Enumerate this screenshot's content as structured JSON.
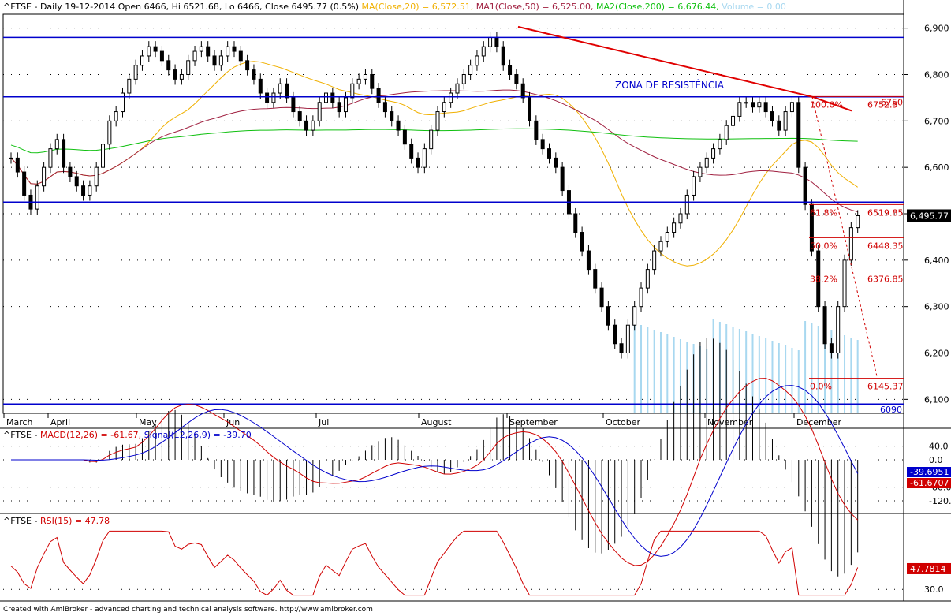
{
  "header": {
    "main_prefix": "^FTSE - Daily 19-12-2014 Open 6466, Hi 6521.68, Lo 6466, Close 6495.77 (0.5%)",
    "ma20": "MA(Close,20) = 6,572.51,",
    "ma50": "MA1(Close,50) = 6,525.00,",
    "ma200": "MA2(Close,200) = 6,676.44,",
    "volume": "Volume = 0.00",
    "macd_prefix": "^FTSE - ",
    "macd": "MACD(12,26) = -61.67,",
    "signal": "Signal(12,26,9) = -39.70",
    "rsi_prefix": "^FTSE - ",
    "rsi": "RSI(15) = 47.78"
  },
  "colors": {
    "candle_up": "#000000",
    "ma20": "#f0b000",
    "ma50": "#a02040",
    "ma200": "#10c010",
    "volume": "#a8d8f0",
    "level_line": "#0000cc",
    "trend_line": "#e00000",
    "fib": "#d00000",
    "macd": "#d00000",
    "signal": "#0000cc",
    "rsi": "#d00000"
  },
  "footer": "Created with AmiBroker - advanced charting and technical analysis software. http://www.amibroker.com",
  "chart_data": [
    {
      "type": "candlestick",
      "name": "price",
      "ylim": [
        6070,
        6930
      ],
      "y_ticks": [
        "6,900",
        "6,800",
        "6,700",
        "6,600",
        "6,500",
        "6,400",
        "6,300",
        "6,200",
        "6,100"
      ],
      "x_labels": [
        "March",
        "April",
        "May",
        "Jun",
        "Jul",
        "August",
        "September",
        "October",
        "November",
        "December"
      ],
      "levels": [
        6880,
        6752,
        6525,
        6090
      ],
      "level_labels": [
        "6090"
      ],
      "annotation": "ZONA DE RESISTÊNCIA",
      "price_badge": "6,495.77",
      "trendline": [
        [
          6903,
          6752
        ]
      ],
      "fib_levels": [
        {
          "pct": "100.0%",
          "value": "6752.5",
          "price": 6752.5
        },
        {
          "pct": "61.8%",
          "value": "6519.85",
          "price": 6519.85
        },
        {
          "pct": "50.0%",
          "value": "6448.35",
          "price": 6448.35
        },
        {
          "pct": "38.2%",
          "value": "6376.85",
          "price": 6376.85
        },
        {
          "pct": "0.0%",
          "value": "6145.37",
          "price": 6145.37
        }
      ],
      "fib_extra_label": "6750",
      "closes_approx": [
        6620,
        6590,
        6540,
        6510,
        6560,
        6600,
        6640,
        6660,
        6600,
        6580,
        6560,
        6540,
        6560,
        6600,
        6650,
        6700,
        6720,
        6760,
        6790,
        6820,
        6840,
        6860,
        6850,
        6830,
        6810,
        6790,
        6800,
        6830,
        6850,
        6860,
        6840,
        6820,
        6840,
        6860,
        6850,
        6830,
        6810,
        6790,
        6760,
        6740,
        6760,
        6780,
        6750,
        6720,
        6700,
        6680,
        6700,
        6740,
        6760,
        6740,
        6720,
        6750,
        6780,
        6790,
        6800,
        6770,
        6740,
        6720,
        6700,
        6680,
        6650,
        6620,
        6600,
        6640,
        6680,
        6720,
        6740,
        6760,
        6780,
        6800,
        6820,
        6840,
        6860,
        6880,
        6860,
        6820,
        6800,
        6780,
        6750,
        6700,
        6660,
        6640,
        6620,
        6600,
        6550,
        6500,
        6460,
        6420,
        6380,
        6340,
        6300,
        6260,
        6220,
        6200,
        6260,
        6300,
        6340,
        6380,
        6420,
        6440,
        6460,
        6480,
        6500,
        6540,
        6580,
        6600,
        6620,
        6640,
        6660,
        6690,
        6710,
        6740,
        6740,
        6730,
        6740,
        6720,
        6700,
        6680,
        6720,
        6740,
        6600,
        6520,
        6420,
        6300,
        6220,
        6200,
        6300,
        6400,
        6470,
        6495.77
      ]
    },
    {
      "type": "line",
      "name": "macd",
      "y_ticks": [
        "40.0",
        "0.0",
        "-80.0",
        "-120.0"
      ],
      "ylim": [
        -150,
        60
      ],
      "badges": [
        "-39.6951",
        "-61.6707"
      ]
    },
    {
      "type": "line",
      "name": "rsi",
      "y_ticks": [
        "30.0"
      ],
      "ylim": [
        20,
        85
      ],
      "badge": "47.7814"
    }
  ]
}
